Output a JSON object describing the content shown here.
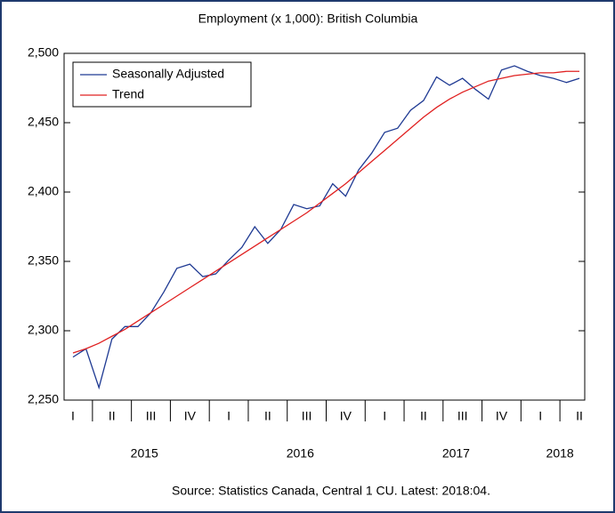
{
  "chart_data": {
    "type": "line",
    "title": "Employment (x 1,000): British Columbia",
    "source": "Source:  Statistics Canada, Central 1 CU. Latest: 2018:04.",
    "categories": [
      "I",
      null,
      null,
      "II",
      null,
      null,
      "III",
      null,
      null,
      "IV",
      null,
      null,
      "I",
      null,
      null,
      "II",
      null,
      null,
      "III",
      null,
      null,
      "IV",
      null,
      null,
      "I",
      null,
      null,
      "II",
      null,
      null,
      "III",
      null,
      null,
      "IV",
      null,
      null,
      "I",
      null,
      null,
      "II"
    ],
    "years": [
      "2015",
      "2016",
      "2017",
      "2018"
    ],
    "series": [
      {
        "name": "Seasonally Adjusted",
        "color": "#1f3a93",
        "values": [
          2281,
          2287,
          2259,
          2294,
          2303,
          2303,
          2313,
          2328,
          2345,
          2348,
          2339,
          2341,
          2351,
          2360,
          2375,
          2363,
          2373,
          2391,
          2388,
          2390,
          2406,
          2397,
          2416,
          2428,
          2443,
          2446,
          2459,
          2466,
          2483,
          2477,
          2482,
          2474,
          2467,
          2488,
          2491,
          2487,
          2484,
          2482,
          2479,
          2482
        ]
      },
      {
        "name": "Trend",
        "color": "#e02020",
        "values": [
          2284,
          2287,
          2291,
          2296,
          2301,
          2307,
          2313,
          2319,
          2325,
          2331,
          2337,
          2343,
          2349,
          2355,
          2361,
          2367,
          2373,
          2379,
          2385,
          2392,
          2399,
          2406,
          2414,
          2422,
          2430,
          2438,
          2446,
          2454,
          2461,
          2467,
          2472,
          2476,
          2480,
          2482,
          2484,
          2485,
          2486,
          2486,
          2487,
          2487
        ]
      }
    ],
    "ylim": [
      2250,
      2500
    ],
    "yticks": [
      {
        "value": 2250,
        "label": "2,250"
      },
      {
        "value": 2300,
        "label": "2,300"
      },
      {
        "value": 2350,
        "label": "2,350"
      },
      {
        "value": 2400,
        "label": "2,400"
      },
      {
        "value": 2450,
        "label": "2,450"
      },
      {
        "value": 2500,
        "label": "2,500"
      }
    ],
    "grid": false,
    "legend": "upper left"
  }
}
